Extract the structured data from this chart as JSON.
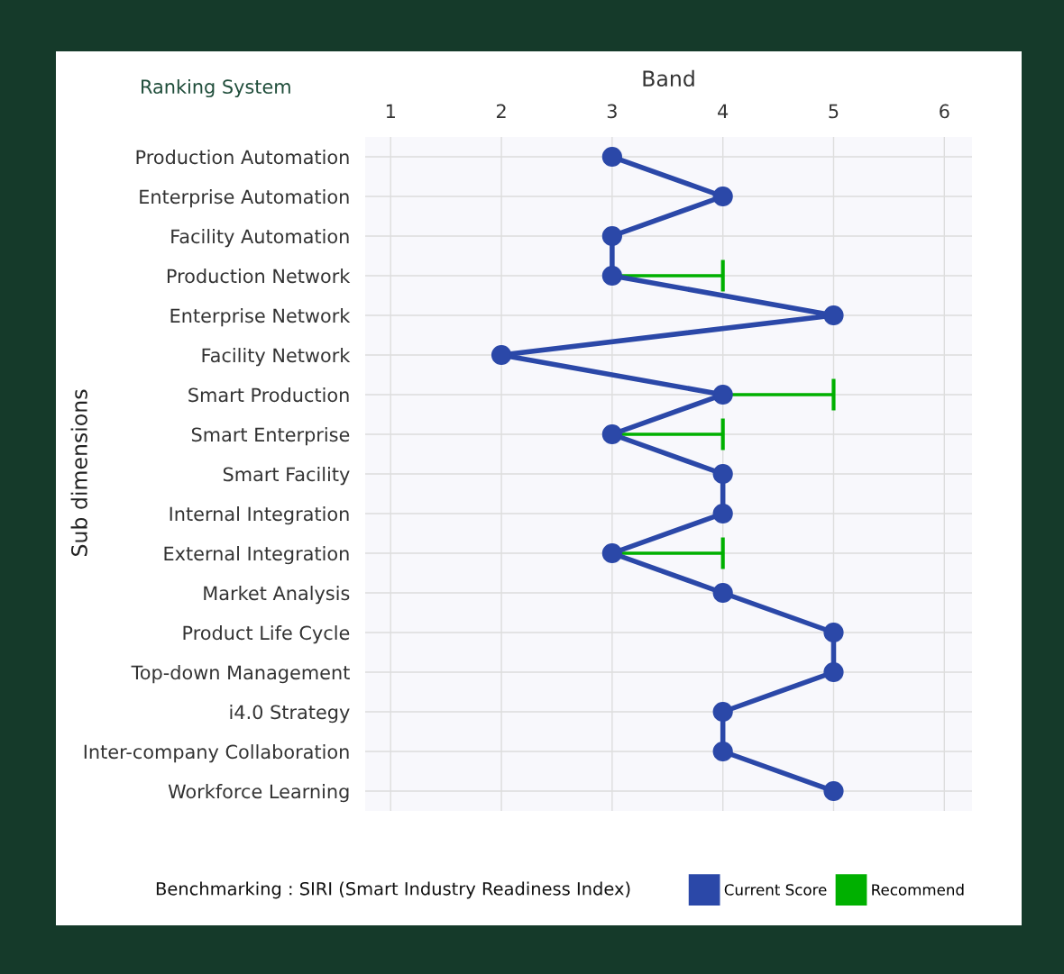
{
  "chart_data": {
    "type": "line",
    "orientation": "horizontal",
    "title": "Ranking System",
    "xlabel": "Band",
    "ylabel": "Sub dimensions",
    "categories": [
      "Production Automation",
      "Enterprise Automation",
      "Facility Automation",
      "Production Network",
      "Enterprise Network",
      "Facility Network",
      "Smart Production",
      "Smart Enterprise",
      "Smart Facility",
      "Internal Integration",
      "External Integration",
      "Market Analysis",
      "Product Life Cycle",
      "Top-down Management",
      "i4.0 Strategy",
      "Inter-company Collaboration",
      "Workforce Learning"
    ],
    "series": [
      {
        "name": "Current Score",
        "color": "#2b48a8",
        "marker": "circle",
        "values": [
          3,
          4,
          3,
          3,
          5,
          2,
          4,
          3,
          4,
          4,
          3,
          4,
          5,
          5,
          4,
          4,
          5
        ]
      },
      {
        "name": "Recommend",
        "type": "bar",
        "color": "#00b000",
        "base": [
          null,
          null,
          null,
          3,
          null,
          null,
          4,
          3,
          null,
          null,
          3,
          null,
          null,
          null,
          null,
          null,
          null
        ],
        "values": [
          null,
          null,
          null,
          1,
          null,
          null,
          1,
          1,
          null,
          null,
          1,
          null,
          null,
          null,
          null,
          null,
          null
        ]
      }
    ],
    "xlim": [
      0.77,
      6.25
    ],
    "xticks": [
      1,
      2,
      3,
      4,
      5,
      6
    ],
    "grid": true,
    "legend": "bottom right",
    "annotations": [
      "Benchmarking : SIRI (Smart Industry Readiness Index)"
    ]
  }
}
